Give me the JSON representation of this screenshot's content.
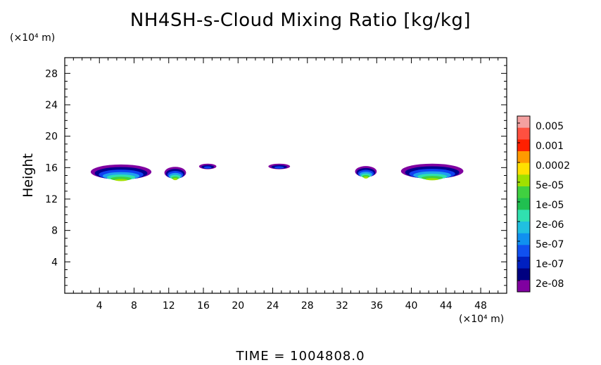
{
  "chart_data": {
    "type": "heatmap",
    "title": "NH4SH-s-Cloud Mixing Ratio [kg/kg]",
    "ylabel": "Height",
    "y_unit": "(×10⁴ m)",
    "x_unit": "(×10⁴ m)",
    "xlim": [
      0,
      51
    ],
    "ylim": [
      0,
      30
    ],
    "x_ticks": [
      4,
      8,
      12,
      16,
      20,
      24,
      28,
      32,
      36,
      40,
      44,
      48
    ],
    "y_ticks": [
      4,
      8,
      12,
      16,
      20,
      24,
      28
    ],
    "colorbar": {
      "labels": [
        "0.005",
        "0.001",
        "0.0002",
        "5e-05",
        "1e-05",
        "2e-06",
        "5e-07",
        "1e-07",
        "2e-08"
      ],
      "colors": [
        "#f4a0a0",
        "#ff5040",
        "#ff2000",
        "#ff9a00",
        "#ffe000",
        "#a0e000",
        "#40d040",
        "#20c050",
        "#30e0b0",
        "#20c0e0",
        "#1090f0",
        "#1050f0",
        "#0020c0",
        "#000080",
        "#8000a0"
      ]
    },
    "cloud_patches": [
      {
        "x_range": [
          3.0,
          10.0
        ],
        "y_range": [
          14.5,
          16.4
        ],
        "peak": "1e-05"
      },
      {
        "x_range": [
          11.5,
          14.0
        ],
        "y_range": [
          14.6,
          16.1
        ],
        "peak": "1e-05"
      },
      {
        "x_range": [
          15.5,
          17.5
        ],
        "y_range": [
          15.8,
          16.5
        ],
        "peak": "1e-07"
      },
      {
        "x_range": [
          23.5,
          26.0
        ],
        "y_range": [
          15.8,
          16.5
        ],
        "peak": "1e-07"
      },
      {
        "x_range": [
          33.5,
          36.0
        ],
        "y_range": [
          14.8,
          16.2
        ],
        "peak": "1e-05"
      },
      {
        "x_range": [
          38.8,
          46.0
        ],
        "y_range": [
          14.6,
          16.5
        ],
        "peak": "1e-05"
      }
    ],
    "grid": false,
    "legend": "colorbar-right"
  },
  "footer": {
    "time_text": "TIME = 1004808.0"
  }
}
